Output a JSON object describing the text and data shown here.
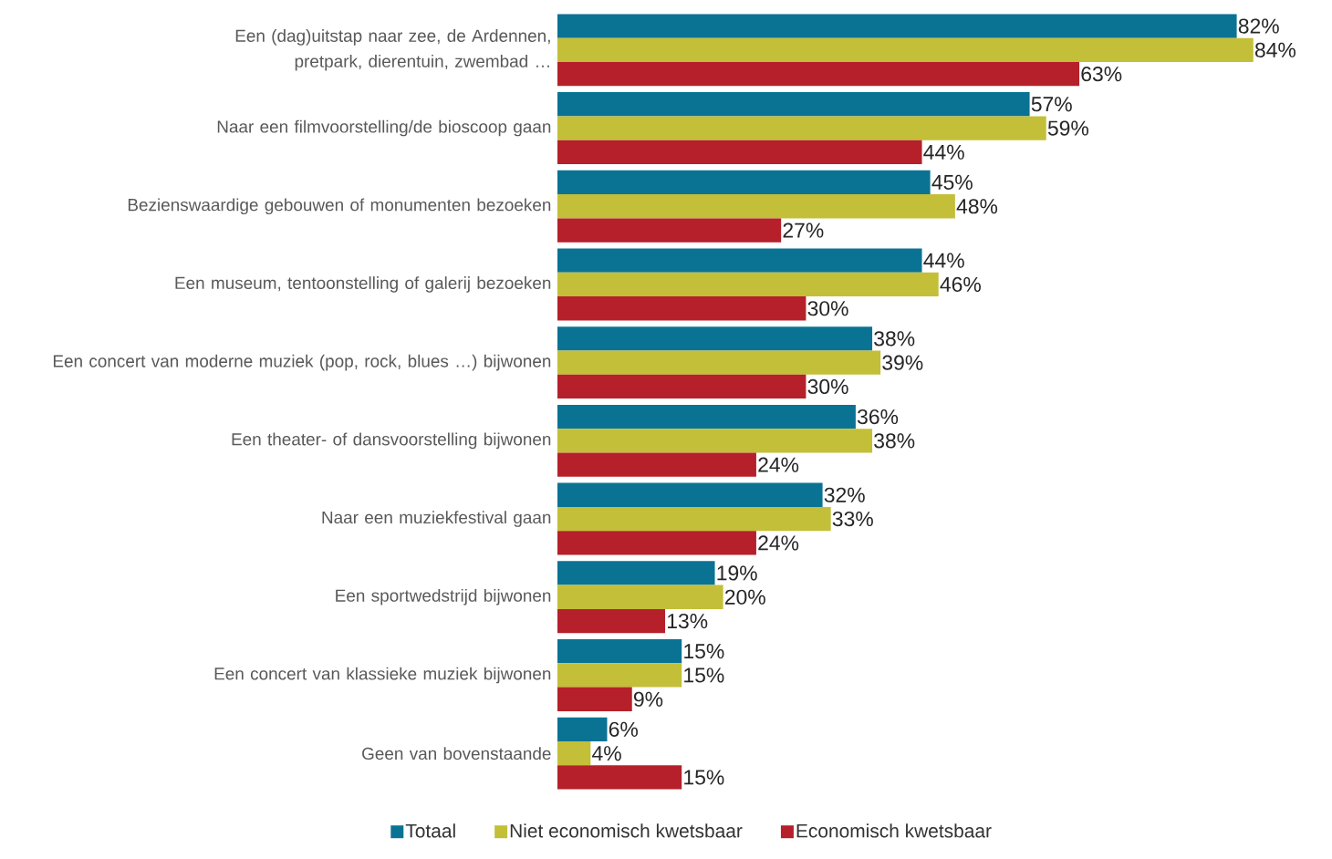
{
  "chart_data": {
    "type": "bar",
    "orientation": "horizontal",
    "legend": "bottom",
    "categories": [
      "Een (dag)uitstap naar zee, de Ardennen, pretpark, dierentuin, zwembad …",
      "Naar een filmvoorstelling/de bioscoop gaan",
      "Bezienswaardige gebouwen of monumenten bezoeken",
      "Een museum, tentoonstelling of galerij bezoeken",
      "Een concert van moderne muziek (pop, rock, blues …) bijwonen",
      "Een theater- of dansvoorstelling bijwonen",
      "Naar een muziekfestival gaan",
      "Een sportwedstrijd bijwonen",
      "Een concert van klassieke muziek bijwonen",
      "Geen van bovenstaande"
    ],
    "series": [
      {
        "name": "Totaal",
        "color": "#0a7394",
        "values": [
          82,
          57,
          45,
          44,
          38,
          36,
          32,
          19,
          15,
          6
        ],
        "value_labels": [
          "82%",
          "57%",
          "45%",
          "44%",
          "38%",
          "36%",
          "32%",
          "19%",
          "15%",
          "6%"
        ]
      },
      {
        "name": "Niet economisch kwetsbaar",
        "color": "#c3bf38",
        "values": [
          84,
          59,
          48,
          46,
          39,
          38,
          33,
          20,
          15,
          4
        ],
        "value_labels": [
          "84%",
          "59%",
          "48%",
          "46%",
          "39%",
          "38%",
          "33%",
          "20%",
          "15%",
          "4%"
        ]
      },
      {
        "name": "Economisch kwetsbaar",
        "color": "#b5202a",
        "values": [
          63,
          44,
          27,
          30,
          30,
          24,
          24,
          13,
          9,
          15
        ],
        "value_labels": [
          "63%",
          "44%",
          "27%",
          "30%",
          "30%",
          "24%",
          "24%",
          "13%",
          "9%",
          "15%"
        ]
      }
    ]
  }
}
